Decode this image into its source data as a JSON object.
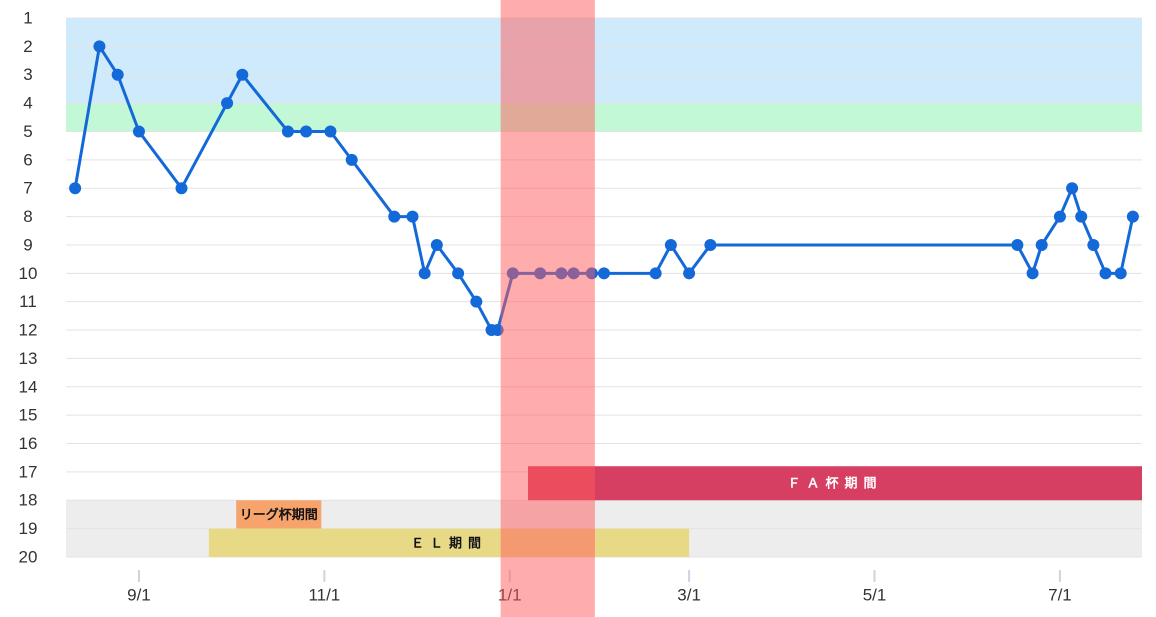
{
  "chart_data": {
    "type": "line",
    "x": [
      "8/11",
      "8/19",
      "8/25",
      "9/1",
      "9/15",
      "9/30",
      "10/5",
      "10/20",
      "10/26",
      "11/3",
      "11/10",
      "11/24",
      "11/30",
      "12/4",
      "12/8",
      "12/15",
      "12/21",
      "12/26",
      "12/28",
      "1/2",
      "1/11",
      "1/18",
      "1/22",
      "1/28",
      "2/1",
      "2/18",
      "2/23",
      "3/1",
      "3/8",
      "6/17",
      "6/22",
      "6/25",
      "7/1",
      "7/5",
      "7/8",
      "7/12",
      "7/16",
      "7/21",
      "7/25"
    ],
    "values": [
      7,
      2,
      3,
      5,
      7,
      4,
      3,
      5,
      5,
      5,
      6,
      8,
      8,
      10,
      9,
      10,
      11,
      12,
      12,
      10,
      10,
      10,
      10,
      10,
      10,
      10,
      9,
      10,
      9,
      9,
      10,
      9,
      8,
      7,
      8,
      9,
      10,
      10,
      8
    ],
    "color": "#1469d9",
    "xlim": [
      "8/8",
      "7/28"
    ],
    "xticks": [
      "9/1",
      "11/1",
      "1/1",
      "3/1",
      "5/1",
      "7/1"
    ],
    "ylim": [
      1,
      20
    ],
    "yticks": [
      1,
      2,
      3,
      4,
      5,
      6,
      7,
      8,
      9,
      10,
      11,
      12,
      13,
      14,
      15,
      16,
      17,
      18,
      19,
      20
    ],
    "y_inverted": true,
    "grid": true,
    "y_bands": [
      {
        "from": 1,
        "to": 4,
        "color": "#cfebfb"
      },
      {
        "from": 4,
        "to": 5,
        "color": "#c3f8d6"
      },
      {
        "from": 18,
        "to": 20,
        "color": "#ededed"
      }
    ],
    "x_bands": [
      {
        "from": "12/29",
        "to": "1/29",
        "color": "rgba(255,90,90,0.5)"
      }
    ],
    "periods": [
      {
        "label": "ＦＡ杯期間",
        "start": "1/7",
        "end": "7/28",
        "ranks": [
          16.8,
          18
        ],
        "color": "#d63f62",
        "text_color": "#ffffff"
      },
      {
        "label": "リーグ杯期間",
        "start": "10/3",
        "end": "10/31",
        "ranks": [
          18,
          19
        ],
        "color": "#f7a36c",
        "text_color": "#111111"
      },
      {
        "label": "ＥＬ期間",
        "start": "9/24",
        "end": "3/1",
        "ranks": [
          19,
          20
        ],
        "color": "#e8d987",
        "text_color": "#111111"
      }
    ]
  }
}
